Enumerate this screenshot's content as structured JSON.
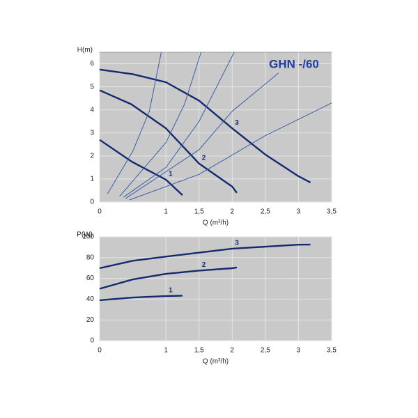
{
  "chart_data": [
    {
      "type": "line",
      "title": "GHN -/60",
      "ylabel": "H(m)",
      "xlabel": "Q (m³/h)",
      "xlim": [
        0,
        3.5
      ],
      "ylim": [
        0,
        6.5
      ],
      "xticks": [
        0,
        1,
        {
          "value": 1.5,
          "label": "1,5"
        },
        2,
        {
          "value": 2.5,
          "label": "2,5"
        },
        3,
        {
          "value": 3.5,
          "label": "3,5"
        }
      ],
      "yticks": [
        0,
        1,
        2,
        3,
        4,
        5,
        6
      ],
      "grid": true,
      "series": [
        {
          "name": "1",
          "color": "#142a6e",
          "x": [
            0,
            0.48,
            1,
            1.25
          ],
          "values": [
            2.7,
            1.76,
            0.97,
            0.3
          ]
        },
        {
          "name": "2",
          "color": "#142a6e",
          "x": [
            0,
            0.48,
            1,
            1.5,
            2,
            2.07
          ],
          "values": [
            4.85,
            4.24,
            3.2,
            1.67,
            0.67,
            0.4
          ]
        },
        {
          "name": "3",
          "color": "#142a6e",
          "x": [
            0,
            0.5,
            1,
            1.5,
            2,
            2.5,
            3,
            3.18
          ],
          "values": [
            5.75,
            5.55,
            5.2,
            4.4,
            3.2,
            2.06,
            1.12,
            0.85
          ]
        },
        {
          "color": "#3b5ca6",
          "x": [
            0.12,
            0.5,
            0.75,
            0.93
          ],
          "values": [
            0.36,
            2.2,
            3.94,
            6.5
          ]
        },
        {
          "color": "#3b5ca6",
          "x": [
            0.3,
            1,
            1.28,
            1.53
          ],
          "values": [
            0.24,
            2.58,
            4.24,
            6.5
          ]
        },
        {
          "color": "#3b5ca6",
          "x": [
            0.36,
            1,
            1.5,
            2.03
          ],
          "values": [
            0.21,
            1.5,
            3.5,
            6.5
          ]
        },
        {
          "color": "#3b5ca6",
          "x": [
            0.39,
            1.5,
            2,
            2.7
          ],
          "values": [
            0.15,
            2.27,
            3.94,
            5.6
          ]
        },
        {
          "color": "#3b5ca6",
          "x": [
            0.45,
            1.5,
            2.5,
            3.5
          ],
          "values": [
            0.09,
            1.2,
            2.88,
            4.3
          ]
        }
      ]
    },
    {
      "type": "line",
      "ylabel": "P(W)",
      "xlabel": "Q (m³/h)",
      "xlim": [
        0,
        3.5
      ],
      "ylim": [
        0,
        100
      ],
      "xticks": [
        0,
        1,
        {
          "value": 1.5,
          "label": "1,5"
        },
        2,
        {
          "value": 2.5,
          "label": "2,5"
        },
        3,
        {
          "value": 3.5,
          "label": "3,5"
        }
      ],
      "yticks": [
        0,
        20,
        40,
        60,
        80,
        100
      ],
      "grid": true,
      "series": [
        {
          "name": "1",
          "color": "#142a6e",
          "x": [
            0,
            0.5,
            1,
            1.25
          ],
          "values": [
            39,
            41.6,
            43,
            43.3
          ]
        },
        {
          "name": "2",
          "color": "#142a6e",
          "x": [
            0,
            0.5,
            1,
            1.5,
            2,
            2.07
          ],
          "values": [
            50,
            59,
            64.4,
            67.5,
            69.8,
            70.5
          ]
        },
        {
          "name": "3",
          "color": "#142a6e",
          "x": [
            0,
            0.5,
            1,
            2,
            3,
            3.18
          ],
          "values": [
            69.8,
            77,
            81,
            88.6,
            92.5,
            92.6
          ]
        }
      ]
    }
  ]
}
